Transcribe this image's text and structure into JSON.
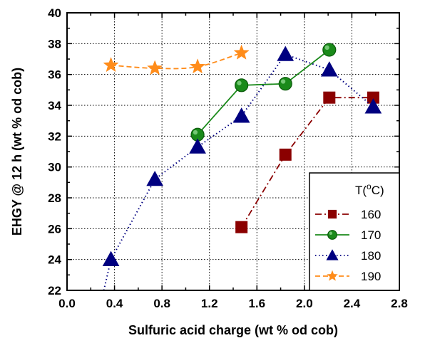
{
  "chart_data": {
    "type": "line",
    "xlabel": "Sulfuric acid charge (wt % od cob)",
    "ylabel": "EHGY @ 12 h (wt % od cob)",
    "xlim": [
      0.0,
      2.8
    ],
    "ylim": [
      22,
      40
    ],
    "xticks": [
      "0.0",
      "0.4",
      "0.8",
      "1.2",
      "1.6",
      "2.0",
      "2.4",
      "2.8"
    ],
    "yticks": [
      "22",
      "24",
      "26",
      "28",
      "30",
      "32",
      "34",
      "36",
      "38",
      "40"
    ],
    "grid": true,
    "legend_position": "bottom-right",
    "legend_title_base": "T(",
    "legend_title_sup": "o",
    "legend_title_tail": "C)",
    "series": [
      {
        "name": "160",
        "color": "#8b0000",
        "marker": "square",
        "line": "dash-dot",
        "smooth": false,
        "x": [
          1.47,
          1.84,
          2.21,
          2.58
        ],
        "y": [
          26.1,
          30.8,
          34.5,
          34.5
        ]
      },
      {
        "name": "170",
        "color": "#1a8a1a",
        "marker": "circle",
        "line": "solid",
        "smooth": false,
        "x": [
          1.1,
          1.47,
          1.84,
          2.21
        ],
        "y": [
          32.1,
          35.3,
          35.4,
          37.6
        ]
      },
      {
        "name": "180",
        "color": "#000080",
        "marker": "triangle",
        "line": "dotted",
        "smooth": false,
        "x": [
          0.31,
          0.37,
          0.74,
          1.1,
          1.47,
          1.84,
          2.21,
          2.58
        ],
        "y": [
          22.0,
          24.0,
          29.2,
          31.3,
          33.3,
          37.3,
          36.3,
          33.9
        ],
        "marker_mask": [
          false,
          true,
          true,
          true,
          true,
          true,
          true,
          true
        ]
      },
      {
        "name": "190",
        "color": "#ff8c1a",
        "marker": "star",
        "line": "dashed",
        "smooth": true,
        "x": [
          0.37,
          0.74,
          1.1,
          1.47
        ],
        "y": [
          36.6,
          36.4,
          36.5,
          37.4
        ]
      }
    ]
  }
}
